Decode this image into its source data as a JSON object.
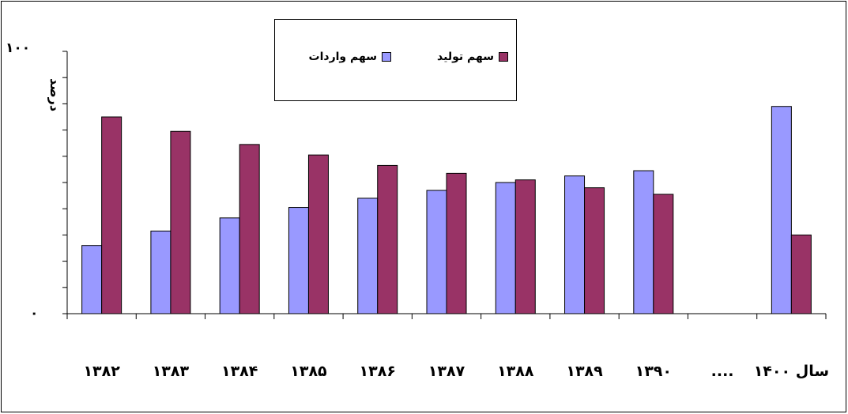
{
  "chart_data": {
    "type": "bar",
    "categories": [
      "۱۳۸۲",
      "۱۳۸۳",
      "۱۳۸۴",
      "۱۳۸۵",
      "۱۳۸۶",
      "۱۳۸۷",
      "۱۳۸۸",
      "۱۳۸۹",
      "۱۳۹۰",
      "....",
      "سال ۱۴۰۰"
    ],
    "series": [
      {
        "name": "سهم واردات",
        "color": "#9999ff",
        "values": [
          26,
          31.5,
          36.5,
          40.5,
          44,
          47,
          50,
          52.5,
          54.5,
          null,
          79
        ]
      },
      {
        "name": "سهم تولید",
        "color": "#993366",
        "values": [
          75,
          69.5,
          64.5,
          60.5,
          56.5,
          53.5,
          51,
          48,
          45.5,
          null,
          30
        ]
      }
    ],
    "ylabel": "درصد",
    "ylim": [
      0,
      100
    ],
    "ytick_labels": {
      "min": "۰",
      "max": "۱۰۰"
    },
    "grid": false,
    "legend_position": "top-center"
  }
}
